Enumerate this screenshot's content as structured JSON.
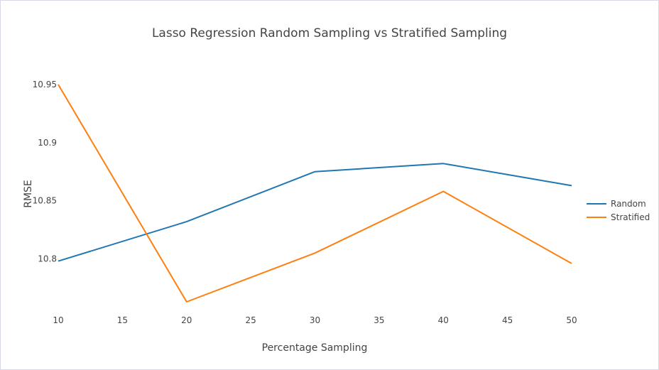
{
  "chart_data": {
    "type": "line",
    "title": "Lasso Regression Random Sampling vs Stratified Sampling",
    "xlabel": "Percentage Sampling",
    "ylabel": "RMSE",
    "x": [
      10,
      20,
      30,
      40,
      50
    ],
    "xlim": [
      10,
      50
    ],
    "ylim": [
      10.763,
      10.95
    ],
    "xticks": [
      10,
      15,
      20,
      25,
      30,
      35,
      40,
      45,
      50
    ],
    "yticks": [
      10.8,
      10.85,
      10.9,
      10.95
    ],
    "xtick_labels": [
      "10",
      "15",
      "20",
      "25",
      "30",
      "35",
      "40",
      "45",
      "50"
    ],
    "ytick_labels": [
      "10.8",
      "10.85",
      "10.9",
      "10.95"
    ],
    "grid": false,
    "legend_position": "right",
    "series": [
      {
        "name": "Random",
        "color": "#1f77b4",
        "values": [
          10.798,
          10.832,
          10.875,
          10.882,
          10.863
        ]
      },
      {
        "name": "Stratified",
        "color": "#ff7f0e",
        "values": [
          10.95,
          10.763,
          10.805,
          10.858,
          10.796
        ]
      }
    ]
  }
}
